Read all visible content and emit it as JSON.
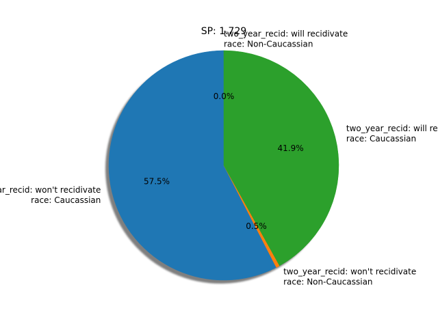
{
  "chart_data": {
    "type": "pie",
    "title": "SP: 1.729",
    "start_angle_deg": 90,
    "direction": "counterclockwise",
    "shadow": true,
    "slices": [
      {
        "label_lines": [
          "two_year_recid: won't recidivate",
          "race: Caucassian"
        ],
        "pct_label": "57.5%",
        "value": 57.5,
        "color": "#1f77b4"
      },
      {
        "label_lines": [
          "two_year_recid: won't recidivate",
          "race: Non-Caucassian"
        ],
        "pct_label": "0.5%",
        "value": 0.5,
        "color": "#ff7f0e"
      },
      {
        "label_lines": [
          "two_year_recid: will recidivate",
          "race: Caucassian"
        ],
        "pct_label": "41.9%",
        "value": 41.9,
        "color": "#2ca02c"
      },
      {
        "label_lines": [
          "two_year_recid: will recidivate",
          "race: Non-Caucassian"
        ],
        "pct_label": "0.0%",
        "value": 0.0,
        "color": "#d62728"
      }
    ]
  }
}
